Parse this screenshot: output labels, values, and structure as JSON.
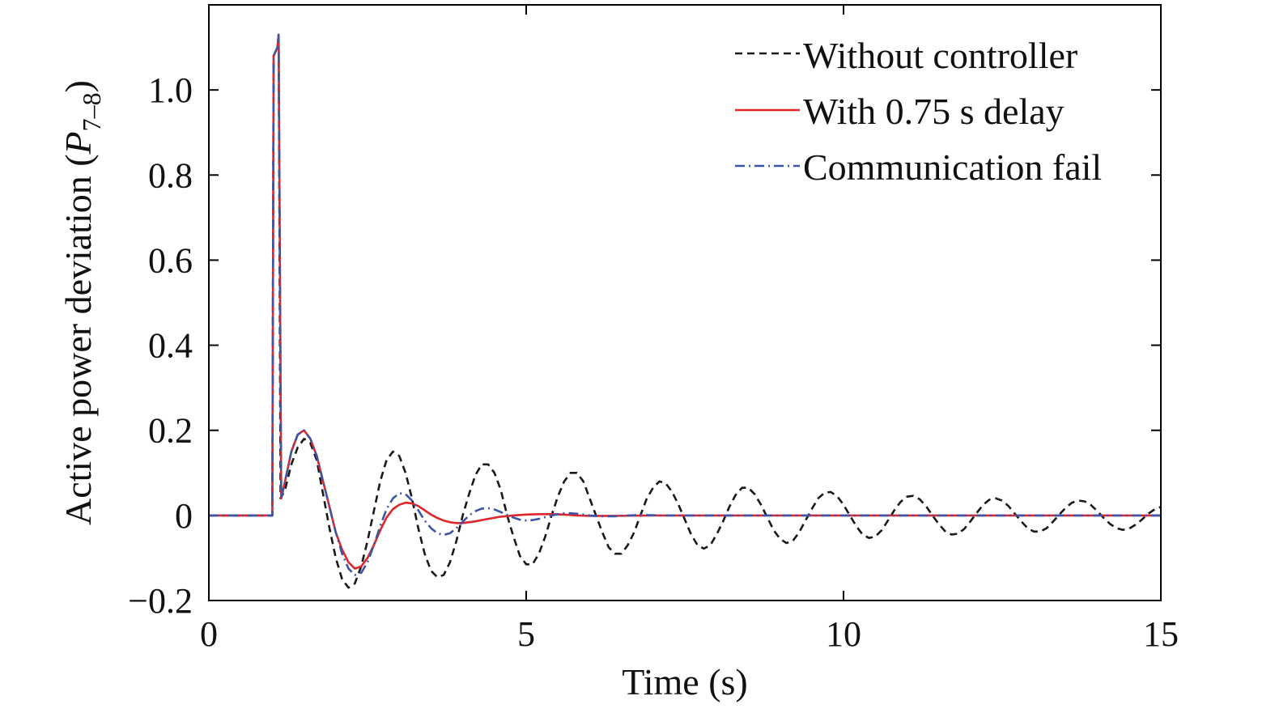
{
  "chart_data": {
    "type": "line",
    "xlabel": "Time (s)",
    "ylabel": "Active power deviation (P7–8)",
    "ylabel_parts": {
      "main": "Active power deviation (",
      "var": "P",
      "sub": "7–8",
      "close": ")"
    },
    "xlim": [
      0,
      15
    ],
    "ylim": [
      -0.2,
      1.2
    ],
    "xticks": [
      0,
      5,
      10,
      15
    ],
    "xtick_labels": [
      "0",
      "5",
      "10",
      "15"
    ],
    "yticks": [
      -0.2,
      0,
      0.2,
      0.4,
      0.6,
      0.8,
      1.0
    ],
    "ytick_labels": [
      "−0.2",
      "0",
      "0.2",
      "0.4",
      "0.6",
      "0.8",
      "1.0"
    ],
    "grid": false,
    "legend_position": "top-right",
    "series": [
      {
        "name": "Without controller",
        "color": "#1a1a1a",
        "dash": "dashed",
        "points": [
          [
            0,
            0
          ],
          [
            1.0,
            0
          ],
          [
            1.02,
            1.08
          ],
          [
            1.08,
            1.1
          ],
          [
            1.1,
            1.13
          ],
          [
            1.13,
            0.04
          ],
          [
            1.2,
            0.06
          ],
          [
            1.3,
            0.12
          ],
          [
            1.4,
            0.16
          ],
          [
            1.5,
            0.18
          ],
          [
            1.6,
            0.17
          ],
          [
            1.7,
            0.13
          ],
          [
            1.8,
            0.05
          ],
          [
            1.9,
            -0.03
          ],
          [
            2.0,
            -0.1
          ],
          [
            2.1,
            -0.15
          ],
          [
            2.2,
            -0.17
          ],
          [
            2.3,
            -0.16
          ],
          [
            2.4,
            -0.12
          ],
          [
            2.5,
            -0.06
          ],
          [
            2.6,
            0.01
          ],
          [
            2.7,
            0.08
          ],
          [
            2.8,
            0.13
          ],
          [
            2.9,
            0.15
          ],
          [
            3.0,
            0.14
          ],
          [
            3.1,
            0.1
          ],
          [
            3.2,
            0.04
          ],
          [
            3.3,
            -0.03
          ],
          [
            3.4,
            -0.09
          ],
          [
            3.5,
            -0.13
          ],
          [
            3.6,
            -0.145
          ],
          [
            3.7,
            -0.14
          ],
          [
            3.8,
            -0.11
          ],
          [
            3.9,
            -0.06
          ],
          [
            4.0,
            0.0
          ],
          [
            4.1,
            0.05
          ],
          [
            4.2,
            0.095
          ],
          [
            4.3,
            0.12
          ],
          [
            4.4,
            0.12
          ],
          [
            4.5,
            0.1
          ],
          [
            4.6,
            0.06
          ],
          [
            4.7,
            0.0
          ],
          [
            4.8,
            -0.05
          ],
          [
            4.9,
            -0.095
          ],
          [
            5.0,
            -0.115
          ],
          [
            5.1,
            -0.115
          ],
          [
            5.2,
            -0.09
          ],
          [
            5.3,
            -0.05
          ],
          [
            5.4,
            0.0
          ],
          [
            5.5,
            0.045
          ],
          [
            5.6,
            0.08
          ],
          [
            5.7,
            0.1
          ],
          [
            5.8,
            0.1
          ],
          [
            5.9,
            0.08
          ],
          [
            6.0,
            0.04
          ],
          [
            6.1,
            0.0
          ],
          [
            6.2,
            -0.04
          ],
          [
            6.3,
            -0.075
          ],
          [
            6.4,
            -0.09
          ],
          [
            6.5,
            -0.09
          ],
          [
            6.6,
            -0.07
          ],
          [
            6.7,
            -0.04
          ],
          [
            6.8,
            0.0
          ],
          [
            6.9,
            0.04
          ],
          [
            7.0,
            0.065
          ],
          [
            7.1,
            0.08
          ],
          [
            7.2,
            0.075
          ],
          [
            7.3,
            0.055
          ],
          [
            7.4,
            0.025
          ],
          [
            7.5,
            -0.01
          ],
          [
            7.6,
            -0.045
          ],
          [
            7.7,
            -0.07
          ],
          [
            7.8,
            -0.078
          ],
          [
            7.9,
            -0.07
          ],
          [
            8.0,
            -0.045
          ],
          [
            8.1,
            -0.015
          ],
          [
            8.2,
            0.02
          ],
          [
            8.3,
            0.048
          ],
          [
            8.4,
            0.065
          ],
          [
            8.5,
            0.065
          ],
          [
            8.6,
            0.05
          ],
          [
            8.7,
            0.025
          ],
          [
            8.8,
            -0.005
          ],
          [
            8.9,
            -0.035
          ],
          [
            9.0,
            -0.055
          ],
          [
            9.1,
            -0.065
          ],
          [
            9.2,
            -0.06
          ],
          [
            9.3,
            -0.04
          ],
          [
            9.4,
            -0.012
          ],
          [
            9.5,
            0.015
          ],
          [
            9.6,
            0.04
          ],
          [
            9.7,
            0.053
          ],
          [
            9.8,
            0.055
          ],
          [
            9.9,
            0.045
          ],
          [
            10.0,
            0.025
          ],
          [
            10.1,
            0.0
          ],
          [
            10.2,
            -0.025
          ],
          [
            10.3,
            -0.045
          ],
          [
            10.4,
            -0.053
          ],
          [
            10.5,
            -0.05
          ],
          [
            10.6,
            -0.035
          ],
          [
            10.7,
            -0.012
          ],
          [
            10.8,
            0.012
          ],
          [
            10.9,
            0.032
          ],
          [
            11.0,
            0.044
          ],
          [
            11.1,
            0.046
          ],
          [
            11.2,
            0.038
          ],
          [
            11.3,
            0.022
          ],
          [
            11.4,
            0.0
          ],
          [
            11.5,
            -0.02
          ],
          [
            11.6,
            -0.037
          ],
          [
            11.7,
            -0.045
          ],
          [
            11.8,
            -0.043
          ],
          [
            11.9,
            -0.032
          ],
          [
            12.0,
            -0.014
          ],
          [
            12.1,
            0.006
          ],
          [
            12.2,
            0.025
          ],
          [
            12.3,
            0.037
          ],
          [
            12.4,
            0.04
          ],
          [
            12.5,
            0.035
          ],
          [
            12.6,
            0.022
          ],
          [
            12.7,
            0.004
          ],
          [
            12.8,
            -0.014
          ],
          [
            12.9,
            -0.03
          ],
          [
            13.0,
            -0.038
          ],
          [
            13.1,
            -0.038
          ],
          [
            13.2,
            -0.03
          ],
          [
            13.3,
            -0.015
          ],
          [
            13.4,
            0.002
          ],
          [
            13.5,
            0.018
          ],
          [
            13.6,
            0.03
          ],
          [
            13.7,
            0.035
          ],
          [
            13.8,
            0.033
          ],
          [
            13.9,
            0.024
          ],
          [
            14.0,
            0.01
          ],
          [
            14.1,
            -0.006
          ],
          [
            14.2,
            -0.02
          ],
          [
            14.3,
            -0.03
          ],
          [
            14.4,
            -0.034
          ],
          [
            14.5,
            -0.031
          ],
          [
            14.6,
            -0.022
          ],
          [
            14.7,
            -0.01
          ],
          [
            14.8,
            0.004
          ],
          [
            14.9,
            0.014
          ],
          [
            15.0,
            0.02
          ]
        ]
      },
      {
        "name": "With 0.75 s delay",
        "color": "#e0262b",
        "dash": "solid",
        "points": [
          [
            0,
            0
          ],
          [
            1.0,
            0
          ],
          [
            1.02,
            1.08
          ],
          [
            1.08,
            1.1
          ],
          [
            1.1,
            1.13
          ],
          [
            1.14,
            0.04
          ],
          [
            1.2,
            0.08
          ],
          [
            1.3,
            0.15
          ],
          [
            1.4,
            0.19
          ],
          [
            1.5,
            0.2
          ],
          [
            1.6,
            0.18
          ],
          [
            1.7,
            0.14
          ],
          [
            1.8,
            0.08
          ],
          [
            1.9,
            0.02
          ],
          [
            2.0,
            -0.04
          ],
          [
            2.1,
            -0.08
          ],
          [
            2.2,
            -0.11
          ],
          [
            2.3,
            -0.125
          ],
          [
            2.4,
            -0.12
          ],
          [
            2.5,
            -0.1
          ],
          [
            2.6,
            -0.07
          ],
          [
            2.7,
            -0.035
          ],
          [
            2.8,
            -0.005
          ],
          [
            2.9,
            0.015
          ],
          [
            3.0,
            0.025
          ],
          [
            3.1,
            0.03
          ],
          [
            3.2,
            0.028
          ],
          [
            3.3,
            0.022
          ],
          [
            3.4,
            0.012
          ],
          [
            3.5,
            0.002
          ],
          [
            3.6,
            -0.006
          ],
          [
            3.7,
            -0.012
          ],
          [
            3.8,
            -0.016
          ],
          [
            3.9,
            -0.018
          ],
          [
            4.0,
            -0.018
          ],
          [
            4.2,
            -0.014
          ],
          [
            4.4,
            -0.008
          ],
          [
            4.6,
            -0.003
          ],
          [
            4.8,
            0.0
          ],
          [
            5.0,
            0.002
          ],
          [
            5.2,
            0.003
          ],
          [
            5.4,
            0.003
          ],
          [
            5.6,
            0.002
          ],
          [
            5.8,
            0.0
          ],
          [
            6.0,
            -0.001
          ],
          [
            6.4,
            -0.001
          ],
          [
            7.0,
            0.0
          ],
          [
            15.0,
            0.0
          ]
        ]
      },
      {
        "name": "Communication fail",
        "color": "#3b56a8",
        "dash": "dashdot",
        "points": [
          [
            0,
            0
          ],
          [
            1.0,
            0
          ],
          [
            1.02,
            1.08
          ],
          [
            1.08,
            1.1
          ],
          [
            1.1,
            1.13
          ],
          [
            1.14,
            0.04
          ],
          [
            1.2,
            0.08
          ],
          [
            1.3,
            0.15
          ],
          [
            1.4,
            0.19
          ],
          [
            1.5,
            0.2
          ],
          [
            1.6,
            0.18
          ],
          [
            1.7,
            0.14
          ],
          [
            1.8,
            0.08
          ],
          [
            1.9,
            0.02
          ],
          [
            2.0,
            -0.04
          ],
          [
            2.1,
            -0.09
          ],
          [
            2.2,
            -0.125
          ],
          [
            2.3,
            -0.14
          ],
          [
            2.4,
            -0.135
          ],
          [
            2.5,
            -0.11
          ],
          [
            2.6,
            -0.07
          ],
          [
            2.7,
            -0.025
          ],
          [
            2.8,
            0.015
          ],
          [
            2.9,
            0.04
          ],
          [
            3.0,
            0.052
          ],
          [
            3.1,
            0.05
          ],
          [
            3.2,
            0.035
          ],
          [
            3.3,
            0.012
          ],
          [
            3.4,
            -0.012
          ],
          [
            3.5,
            -0.03
          ],
          [
            3.6,
            -0.042
          ],
          [
            3.7,
            -0.046
          ],
          [
            3.8,
            -0.042
          ],
          [
            3.9,
            -0.03
          ],
          [
            4.0,
            -0.015
          ],
          [
            4.1,
            0.0
          ],
          [
            4.2,
            0.01
          ],
          [
            4.3,
            0.016
          ],
          [
            4.4,
            0.017
          ],
          [
            4.5,
            0.014
          ],
          [
            4.6,
            0.008
          ],
          [
            4.7,
            0.001
          ],
          [
            4.8,
            -0.005
          ],
          [
            4.9,
            -0.01
          ],
          [
            5.0,
            -0.012
          ],
          [
            5.1,
            -0.011
          ],
          [
            5.2,
            -0.008
          ],
          [
            5.3,
            -0.004
          ],
          [
            5.4,
            0.0
          ],
          [
            5.5,
            0.003
          ],
          [
            5.6,
            0.005
          ],
          [
            5.7,
            0.005
          ],
          [
            5.8,
            0.004
          ],
          [
            5.9,
            0.002
          ],
          [
            6.0,
            0.0
          ],
          [
            6.2,
            -0.002
          ],
          [
            6.4,
            -0.002
          ],
          [
            6.6,
            0.0
          ],
          [
            6.8,
            0.001
          ],
          [
            7.2,
            0.0
          ],
          [
            15.0,
            0.0
          ]
        ]
      }
    ]
  }
}
